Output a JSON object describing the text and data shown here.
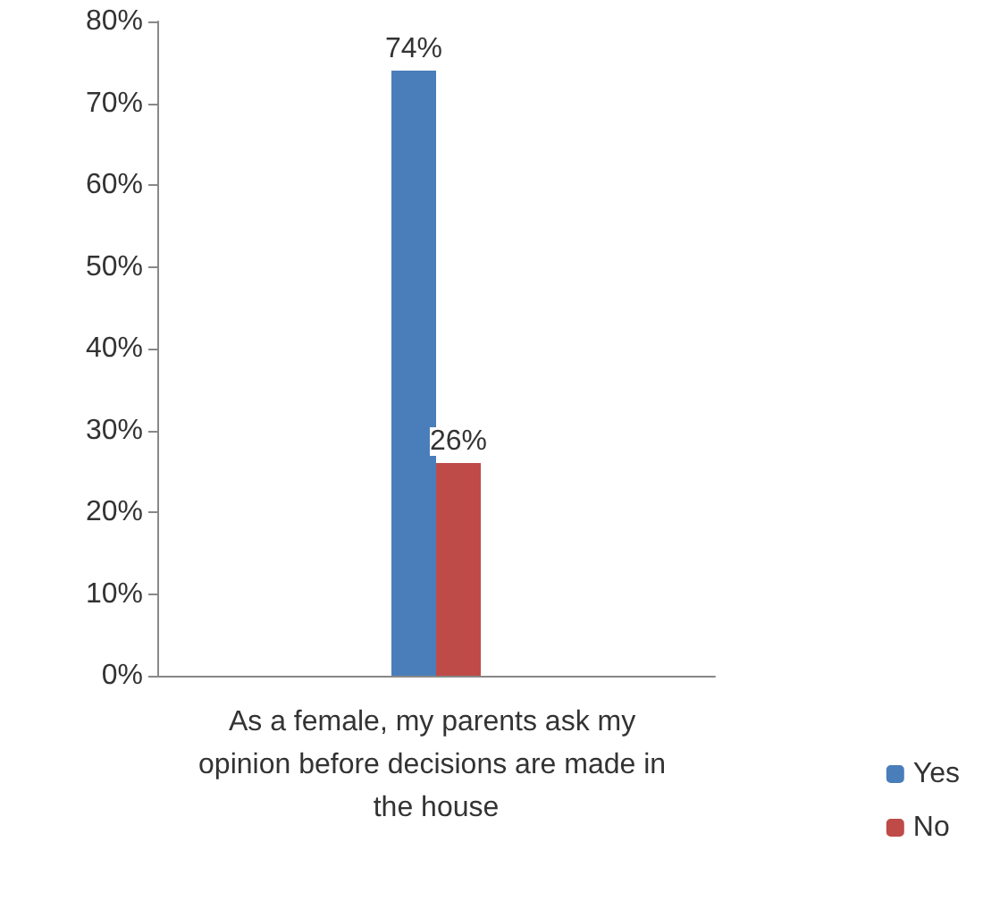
{
  "chart_data": {
    "type": "bar",
    "categories": [
      "As a female, my parents ask my opinion before decisions are made in the house"
    ],
    "series": [
      {
        "name": "Yes",
        "color": "#4a7ebb",
        "values": [
          74
        ],
        "value_labels": [
          "74%"
        ]
      },
      {
        "name": "No",
        "color": "#be4b48",
        "values": [
          26
        ],
        "value_labels": [
          "26%"
        ]
      }
    ],
    "ylim": [
      0,
      80
    ],
    "yticks": [
      {
        "value": 0,
        "label": "0%"
      },
      {
        "value": 10,
        "label": "10%"
      },
      {
        "value": 20,
        "label": "20%"
      },
      {
        "value": 30,
        "label": "30%"
      },
      {
        "value": 40,
        "label": "40%"
      },
      {
        "value": 50,
        "label": "50%"
      },
      {
        "value": 60,
        "label": "60%"
      },
      {
        "value": 70,
        "label": "70%"
      },
      {
        "value": 80,
        "label": "80%"
      }
    ],
    "grid": false,
    "legend": "right"
  }
}
